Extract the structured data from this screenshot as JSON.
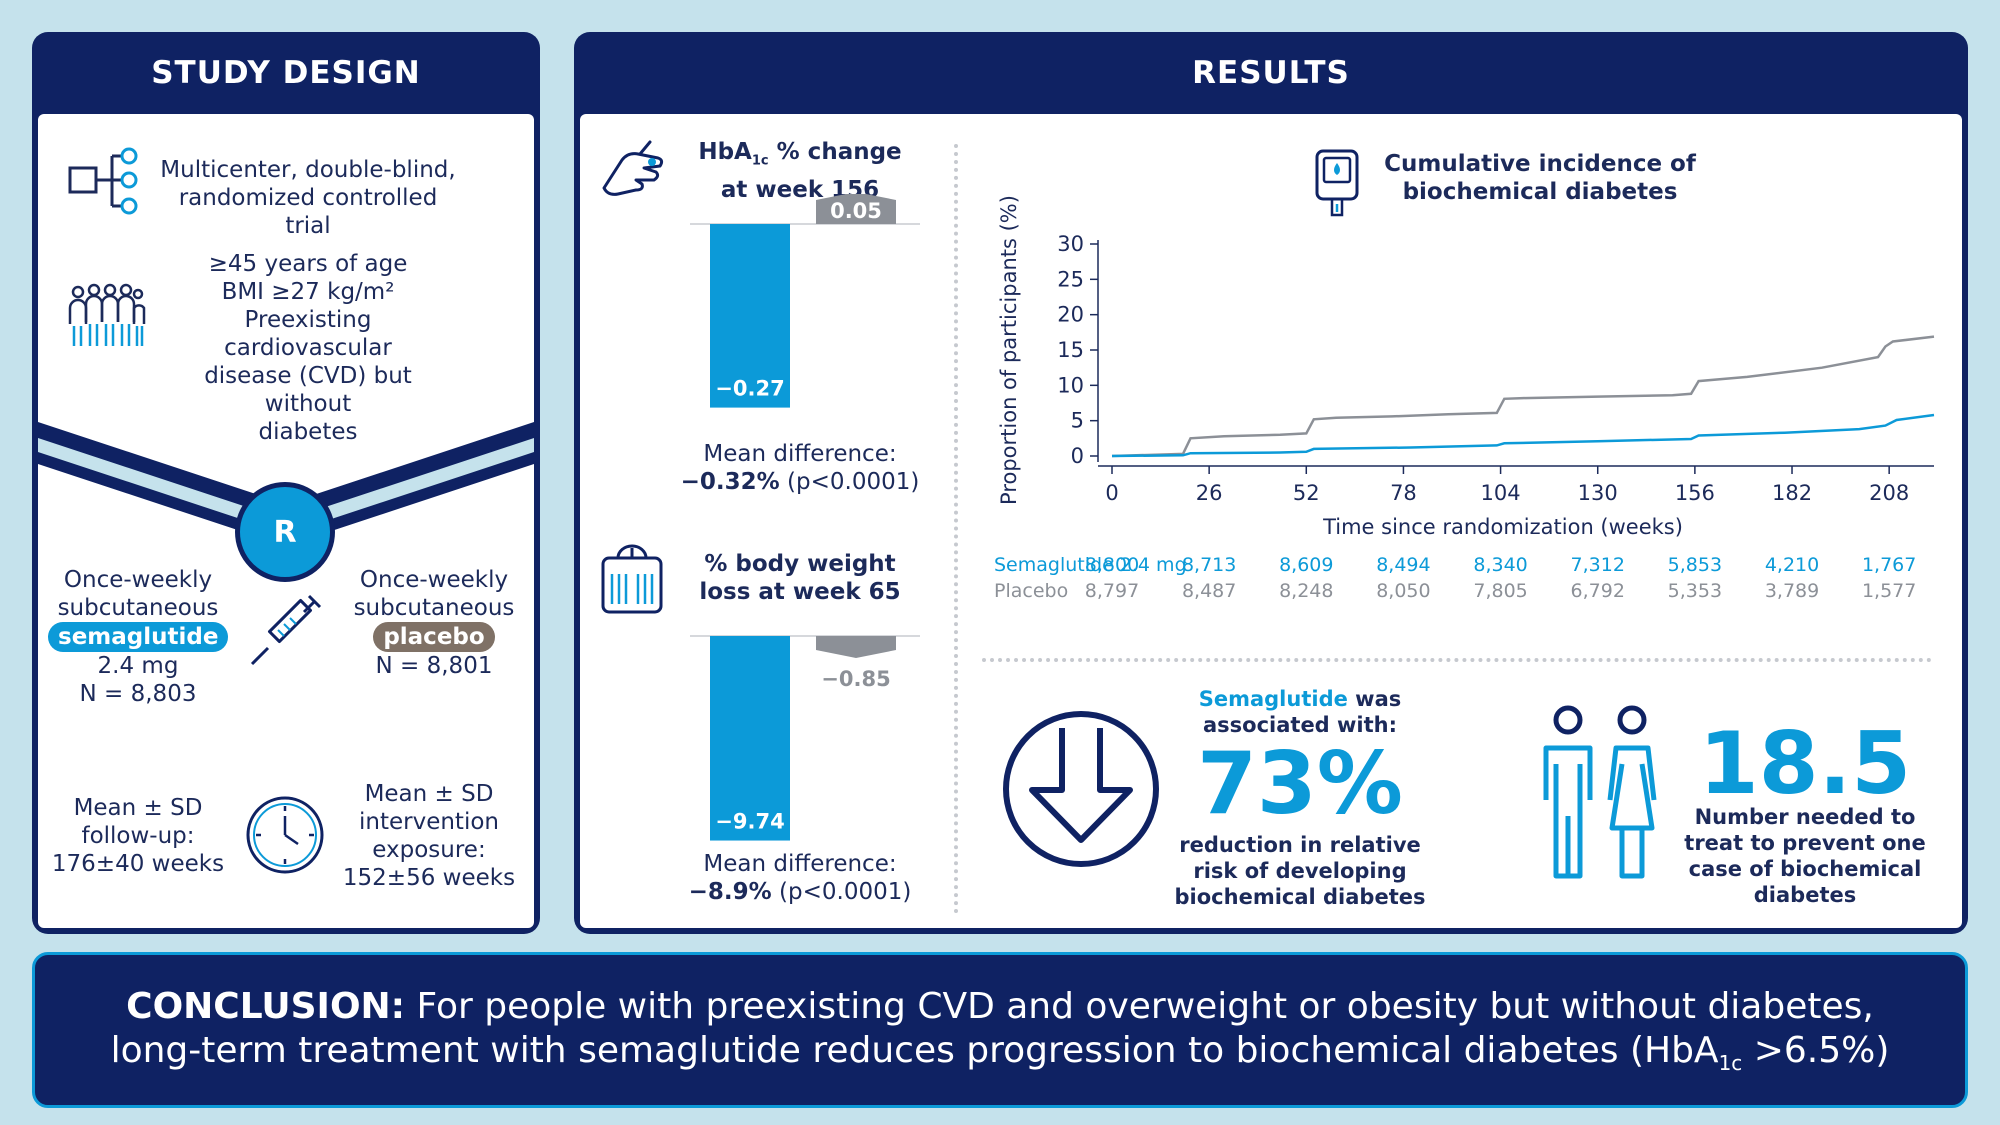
{
  "study_design": {
    "title": "STUDY DESIGN",
    "trial": [
      "Multicenter, double-blind,",
      "randomized controlled trial"
    ],
    "population": [
      "≥45 years of age",
      "BMI ≥27 kg/m²",
      "Preexisting cardiovascular",
      "disease (CVD) but without",
      "diabetes"
    ],
    "randomization_label": "R",
    "arm_sema": {
      "line1": "Once-weekly",
      "line2": "subcutaneous",
      "drug": "semaglutide",
      "dose": "2.4 mg",
      "n": "N = 8,803"
    },
    "arm_placebo": {
      "line1": "Once-weekly",
      "line2": "subcutaneous",
      "drug": "placebo",
      "n": "N = 8,801"
    },
    "followup": [
      "Mean ± SD",
      "follow-up:",
      "176±40 weeks"
    ],
    "exposure": [
      "Mean ± SD",
      "intervention",
      "exposure:",
      "152±56 weeks"
    ]
  },
  "results": {
    "title": "RESULTS",
    "hba1c": {
      "title_pre": "HbA",
      "title_sub": "1c",
      "title_post": " % change",
      "title_line2": "at week 156",
      "sema_value": -0.27,
      "placebo_value": 0.05,
      "sema_label": "−0.27",
      "placebo_label": "0.05",
      "mean_diff_label": "Mean difference:",
      "mean_diff_value": "−0.32%",
      "mean_diff_p": " (p<0.0001)"
    },
    "weight": {
      "title_line1": "% body weight",
      "title_line2": "loss at week 65",
      "sema_value": -9.74,
      "placebo_value": -0.85,
      "sema_label": "−9.74",
      "placebo_label": "−0.85",
      "mean_diff_label": "Mean difference:",
      "mean_diff_value": "−8.9%",
      "mean_diff_p": " (p<0.0001)"
    },
    "chart_title": [
      "Cumulative incidence of",
      "biochemical diabetes"
    ],
    "at_risk": {
      "semaglutide_label": "Semaglutide 2.4 mg",
      "placebo_label": "Placebo",
      "semaglutide": [
        "8,800",
        "8,713",
        "8,609",
        "8,494",
        "8,340",
        "7,312",
        "5,853",
        "4,210",
        "1,767"
      ],
      "placebo": [
        "8,797",
        "8,487",
        "8,248",
        "8,050",
        "7,805",
        "6,792",
        "5,353",
        "3,789",
        "1,577"
      ]
    },
    "rrr": {
      "drug": "Semaglutide",
      "line1_rest": " was",
      "line2": "associated with:",
      "value": "73%",
      "desc": [
        "reduction in relative",
        "risk of developing",
        "biochemical diabetes"
      ]
    },
    "nnt": {
      "value": "18.5",
      "desc": [
        "Number needed to",
        "treat to prevent one",
        "case of biochemical",
        "diabetes"
      ]
    }
  },
  "conclusion": {
    "label": "CONCLUSION:",
    "line1": " For people with preexisting CVD and overweight or obesity but without diabetes,",
    "line2_pre": "long-term treatment with semaglutide reduces progression to biochemical diabetes (HbA",
    "line2_sub": "1c",
    "line2_post": " >6.5%)"
  },
  "colors": {
    "navy": "#0f2263",
    "cyan": "#0c9ad8",
    "grey": "#8c9097",
    "background": "#c5e2ec"
  },
  "chart_data": {
    "type": "line",
    "xlabel": "Time since randomization (weeks)",
    "ylabel": "Proportion of participants (%)",
    "xticks": [
      0,
      26,
      52,
      78,
      104,
      130,
      156,
      182,
      208
    ],
    "yticks": [
      0,
      5,
      10,
      15,
      20,
      25,
      30
    ],
    "xlim": [
      0,
      220
    ],
    "ylim": [
      0,
      30
    ],
    "series": [
      {
        "name": "Placebo",
        "color": "#8c9097",
        "x": [
          0,
          19,
          21,
          30,
          45,
          52,
          54,
          60,
          75,
          90,
          103,
          105,
          110,
          130,
          150,
          155,
          157,
          170,
          190,
          205,
          207,
          209,
          220
        ],
        "y": [
          0,
          0.3,
          2.5,
          2.8,
          3.0,
          3.2,
          5.2,
          5.4,
          5.6,
          5.9,
          6.1,
          8.1,
          8.2,
          8.4,
          8.6,
          8.8,
          10.6,
          11.2,
          12.5,
          14.0,
          15.5,
          16.2,
          16.9
        ]
      },
      {
        "name": "Semaglutide 2.4 mg",
        "color": "#0c9ad8",
        "x": [
          0,
          19,
          21,
          45,
          52,
          54,
          80,
          103,
          105,
          130,
          155,
          157,
          180,
          200,
          207,
          210,
          220
        ],
        "y": [
          0,
          0.1,
          0.4,
          0.5,
          0.6,
          1.0,
          1.2,
          1.5,
          1.8,
          2.1,
          2.4,
          2.9,
          3.3,
          3.8,
          4.3,
          5.1,
          5.8
        ]
      }
    ]
  }
}
